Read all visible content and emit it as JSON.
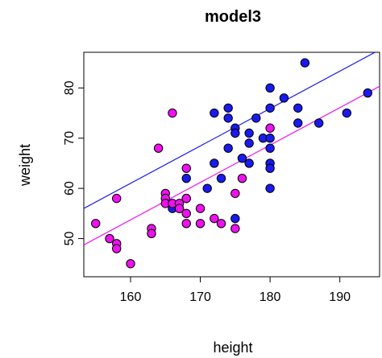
{
  "chart_data": {
    "type": "scatter",
    "title": "model3",
    "xlabel": "height",
    "ylabel": "weight",
    "xlim": [
      153.3,
      195.7
    ],
    "ylim": [
      42.4,
      87.1
    ],
    "x_ticks": [
      160,
      170,
      180,
      190
    ],
    "y_ticks": [
      50,
      60,
      70,
      80
    ],
    "grid": false,
    "series": [
      {
        "color": "#1a1aee",
        "points": [
          [
            166,
            56
          ],
          [
            167,
            56
          ],
          [
            168,
            62
          ],
          [
            168,
            58
          ],
          [
            171,
            60
          ],
          [
            172,
            65
          ],
          [
            172,
            75
          ],
          [
            173,
            62
          ],
          [
            174,
            76
          ],
          [
            174,
            74
          ],
          [
            174,
            68
          ],
          [
            175,
            72
          ],
          [
            175,
            71
          ],
          [
            175,
            54
          ],
          [
            176,
            66
          ],
          [
            177,
            65
          ],
          [
            177,
            71
          ],
          [
            177,
            69
          ],
          [
            178,
            74
          ],
          [
            179,
            70
          ],
          [
            180,
            80
          ],
          [
            180,
            76
          ],
          [
            180,
            70
          ],
          [
            180,
            68
          ],
          [
            180,
            65
          ],
          [
            180,
            64
          ],
          [
            180,
            60
          ],
          [
            182,
            78
          ],
          [
            184,
            76
          ],
          [
            184,
            73
          ],
          [
            185,
            85
          ],
          [
            187,
            73
          ],
          [
            191,
            75
          ],
          [
            194,
            79
          ]
        ],
        "fit": {
          "intercept": -58.17,
          "slope": 0.7448
        }
      },
      {
        "color": "#ee11ee",
        "points": [
          [
            155,
            53
          ],
          [
            157,
            50
          ],
          [
            158,
            58
          ],
          [
            158,
            49
          ],
          [
            158,
            48
          ],
          [
            160,
            45
          ],
          [
            163,
            52
          ],
          [
            163,
            51
          ],
          [
            164,
            68
          ],
          [
            165,
            59
          ],
          [
            165,
            58
          ],
          [
            165,
            57
          ],
          [
            166,
            75
          ],
          [
            166,
            57
          ],
          [
            167,
            57
          ],
          [
            167,
            56
          ],
          [
            168,
            64
          ],
          [
            168,
            58
          ],
          [
            168,
            55
          ],
          [
            168,
            53
          ],
          [
            170,
            56
          ],
          [
            170,
            53
          ],
          [
            172,
            54
          ],
          [
            173,
            53
          ],
          [
            175,
            52
          ],
          [
            175,
            59
          ],
          [
            176,
            62
          ],
          [
            180,
            72
          ]
        ],
        "fit": {
          "intercept": -65.44,
          "slope": 0.7448
        }
      }
    ]
  }
}
